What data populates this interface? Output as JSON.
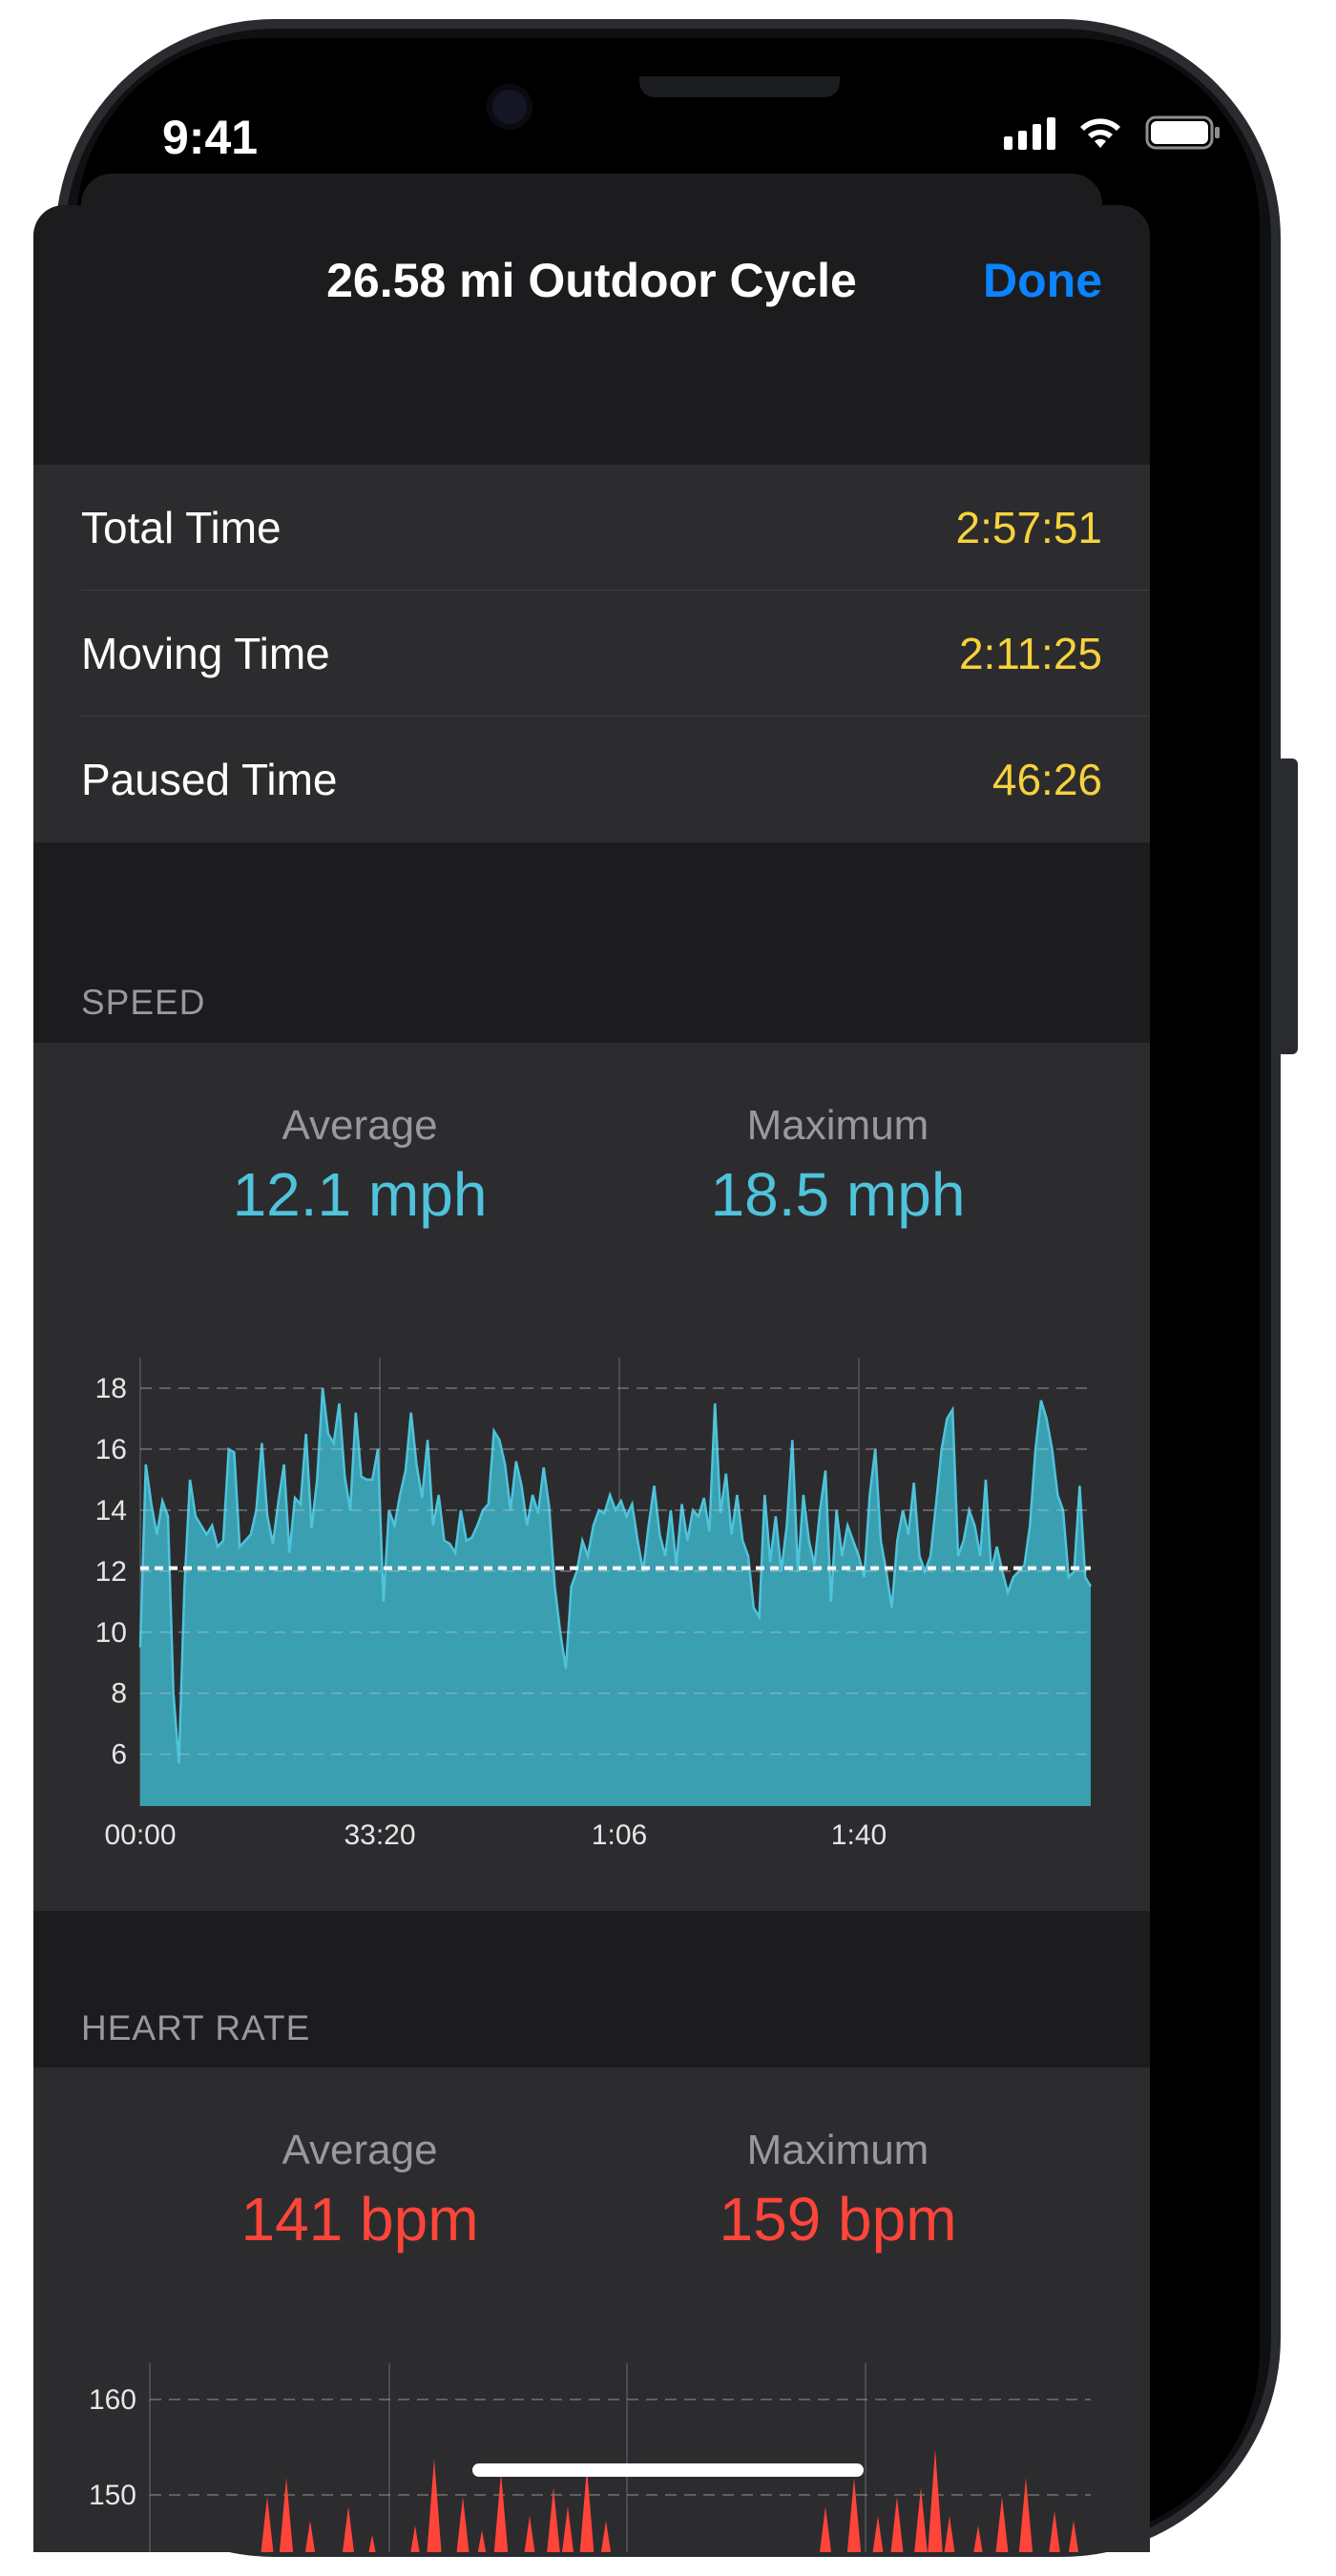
{
  "status": {
    "time": "9:41"
  },
  "nav": {
    "title": "26.58 mi Outdoor Cycle",
    "done_label": "Done"
  },
  "times": [
    {
      "label": "Total Time",
      "value": "2:57:51"
    },
    {
      "label": "Moving Time",
      "value": "2:11:25"
    },
    {
      "label": "Paused Time",
      "value": "46:26"
    }
  ],
  "speed": {
    "header": "SPEED",
    "average_label": "Average",
    "average_value": "12.1 mph",
    "maximum_label": "Maximum",
    "maximum_value": "18.5 mph"
  },
  "heart_rate": {
    "header": "HEART RATE",
    "average_label": "Average",
    "average_value": "141 bpm",
    "maximum_label": "Maximum",
    "maximum_value": "159 bpm"
  },
  "colors": {
    "speed": "#4fc3dc",
    "speed_fill": "#3a9fb0",
    "heart": "#ff453a",
    "accent": "#0a84ff",
    "time_value": "#f7d23c"
  },
  "chart_data": [
    {
      "type": "area",
      "x_tick_labels": [
        "00:00",
        "33:20",
        "1:06",
        "1:40"
      ],
      "y_ticks": [
        6,
        8,
        10,
        12,
        14,
        16,
        18
      ],
      "ylim": [
        4.3,
        19
      ],
      "average_line": 12.1,
      "grid": true,
      "values": [
        9.5,
        15.5,
        14.2,
        13.2,
        14.3,
        13.8,
        8.0,
        5.7,
        11.5,
        15.0,
        13.8,
        13.5,
        13.2,
        13.5,
        12.8,
        13.0,
        16.0,
        15.9,
        12.8,
        13.0,
        13.2,
        14.0,
        16.2,
        13.8,
        12.9,
        14.3,
        15.5,
        12.6,
        14.4,
        14.2,
        16.5,
        13.4,
        15.0,
        18.0,
        16.5,
        16.2,
        17.5,
        15.1,
        14.0,
        17.2,
        15.1,
        15.0,
        15.0,
        16.0,
        11.0,
        14.0,
        13.5,
        14.5,
        15.3,
        17.2,
        15.5,
        14.4,
        16.3,
        13.5,
        14.5,
        13.0,
        12.9,
        12.6,
        14.0,
        13.0,
        13.1,
        13.5,
        14.0,
        14.2,
        16.6,
        16.3,
        15.5,
        14.0,
        15.6,
        14.8,
        13.5,
        14.5,
        13.9,
        15.4,
        14.1,
        11.5,
        10.0,
        8.8,
        11.5,
        12.0,
        13.0,
        12.5,
        13.5,
        14.0,
        13.9,
        14.5,
        14.0,
        14.3,
        13.8,
        14.2,
        13.0,
        12.0,
        13.5,
        14.8,
        13.2,
        12.5,
        14.0,
        12.2,
        14.2,
        13.0,
        14.0,
        13.8,
        14.4,
        13.3,
        17.5,
        13.9,
        15.2,
        13.2,
        14.5,
        13.0,
        12.5,
        10.8,
        10.5,
        14.5,
        12.3,
        13.8,
        12.0,
        13.5,
        16.3,
        12.0,
        14.5,
        13.0,
        12.2,
        14.0,
        15.3,
        11.0,
        14.0,
        12.5,
        13.5,
        13.0,
        12.5,
        11.8,
        14.5,
        16.0,
        13.0,
        12.0,
        10.8,
        13.0,
        14.0,
        13.2,
        14.9,
        12.5,
        12.0,
        12.5,
        14.2,
        16.0,
        17.0,
        17.3,
        12.5,
        13.0,
        14.0,
        13.5,
        12.5,
        15.0,
        12.0,
        12.8,
        12.0,
        11.3,
        11.8,
        12.0,
        12.2,
        13.5,
        16.0,
        17.6,
        17.0,
        16.0,
        14.5,
        14.0,
        11.8,
        12.0,
        14.8,
        11.8,
        11.5
      ]
    },
    {
      "type": "area",
      "y_tick_labels": [
        "160",
        "150"
      ],
      "grid": true
    }
  ]
}
